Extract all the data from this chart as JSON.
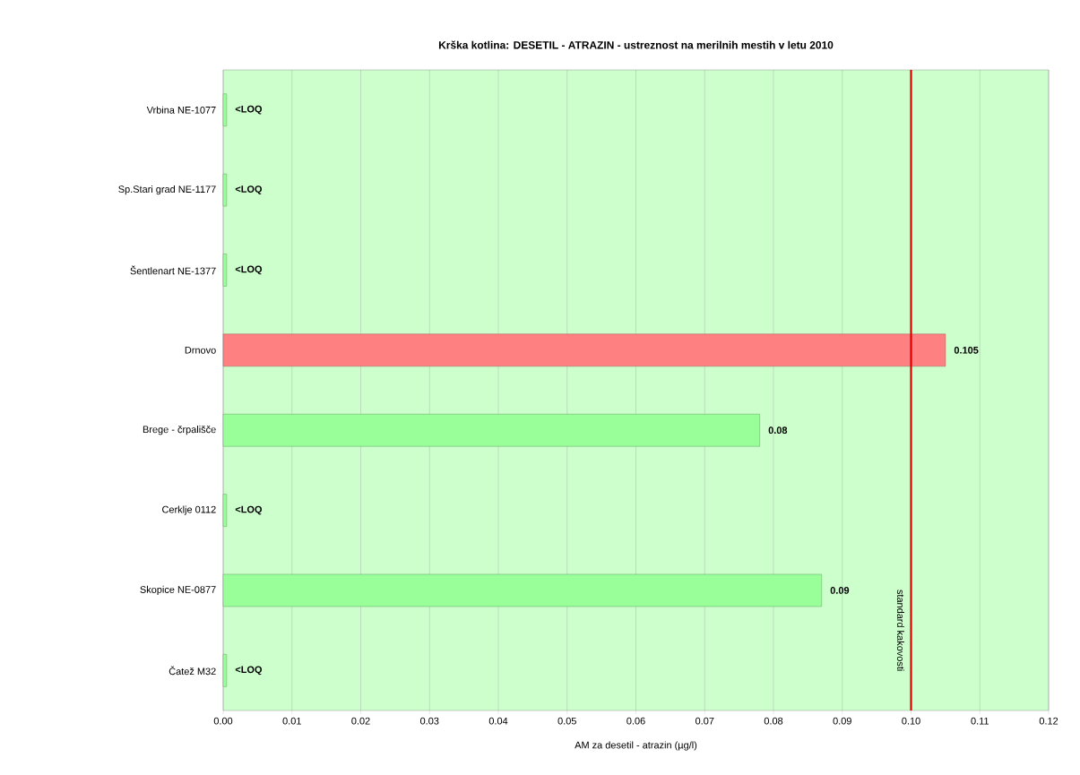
{
  "chart_data": {
    "type": "bar",
    "orientation": "horizontal",
    "title": "Krška kotlina: DESETIL - ATRAZIN  - ustreznost  na merilnih mestih v letu 2010",
    "xlabel": "AM za desetil - atrazin (µg/l)",
    "categories": [
      "Vrbina NE-1077",
      "Sp.Stari grad NE-1177",
      "Šentlenart NE-1377",
      "Drnovo",
      "Brege - črpališče",
      "Cerklje 0112",
      "Skopice NE-0877",
      "Čatež M32"
    ],
    "values": [
      0.0005,
      0.0005,
      0.0005,
      0.105,
      0.078,
      0.0005,
      0.087,
      0.0005
    ],
    "value_labels": [
      "<LOQ",
      "<LOQ",
      "<LOQ",
      "0.105",
      "0.08",
      "<LOQ",
      "0.09",
      "<LOQ"
    ],
    "colors": [
      "#99ff99",
      "#99ff99",
      "#99ff99",
      "#ff8080",
      "#99ff99",
      "#99ff99",
      "#99ff99",
      "#99ff99"
    ],
    "xlim": [
      0,
      0.12
    ],
    "xticks": [
      {
        "value": 0,
        "label": "0.00"
      },
      {
        "value": 0.01,
        "label": "0.01"
      },
      {
        "value": 0.02,
        "label": "0.02"
      },
      {
        "value": 0.03,
        "label": "0.03"
      },
      {
        "value": 0.04,
        "label": "0.04"
      },
      {
        "value": 0.05,
        "label": "0.05"
      },
      {
        "value": 0.06,
        "label": "0.06"
      },
      {
        "value": 0.07,
        "label": "0.07"
      },
      {
        "value": 0.08,
        "label": "0.08"
      },
      {
        "value": 0.09,
        "label": "0.09"
      },
      {
        "value": 0.1,
        "label": "0.10"
      },
      {
        "value": 0.11,
        "label": "0.11"
      },
      {
        "value": 0.12,
        "label": "0.12"
      }
    ],
    "grid": "x",
    "ref_lines": [
      {
        "axis": "x",
        "value": 0.1,
        "label": "standard kakovosti",
        "color": "#dd0000"
      }
    ]
  }
}
